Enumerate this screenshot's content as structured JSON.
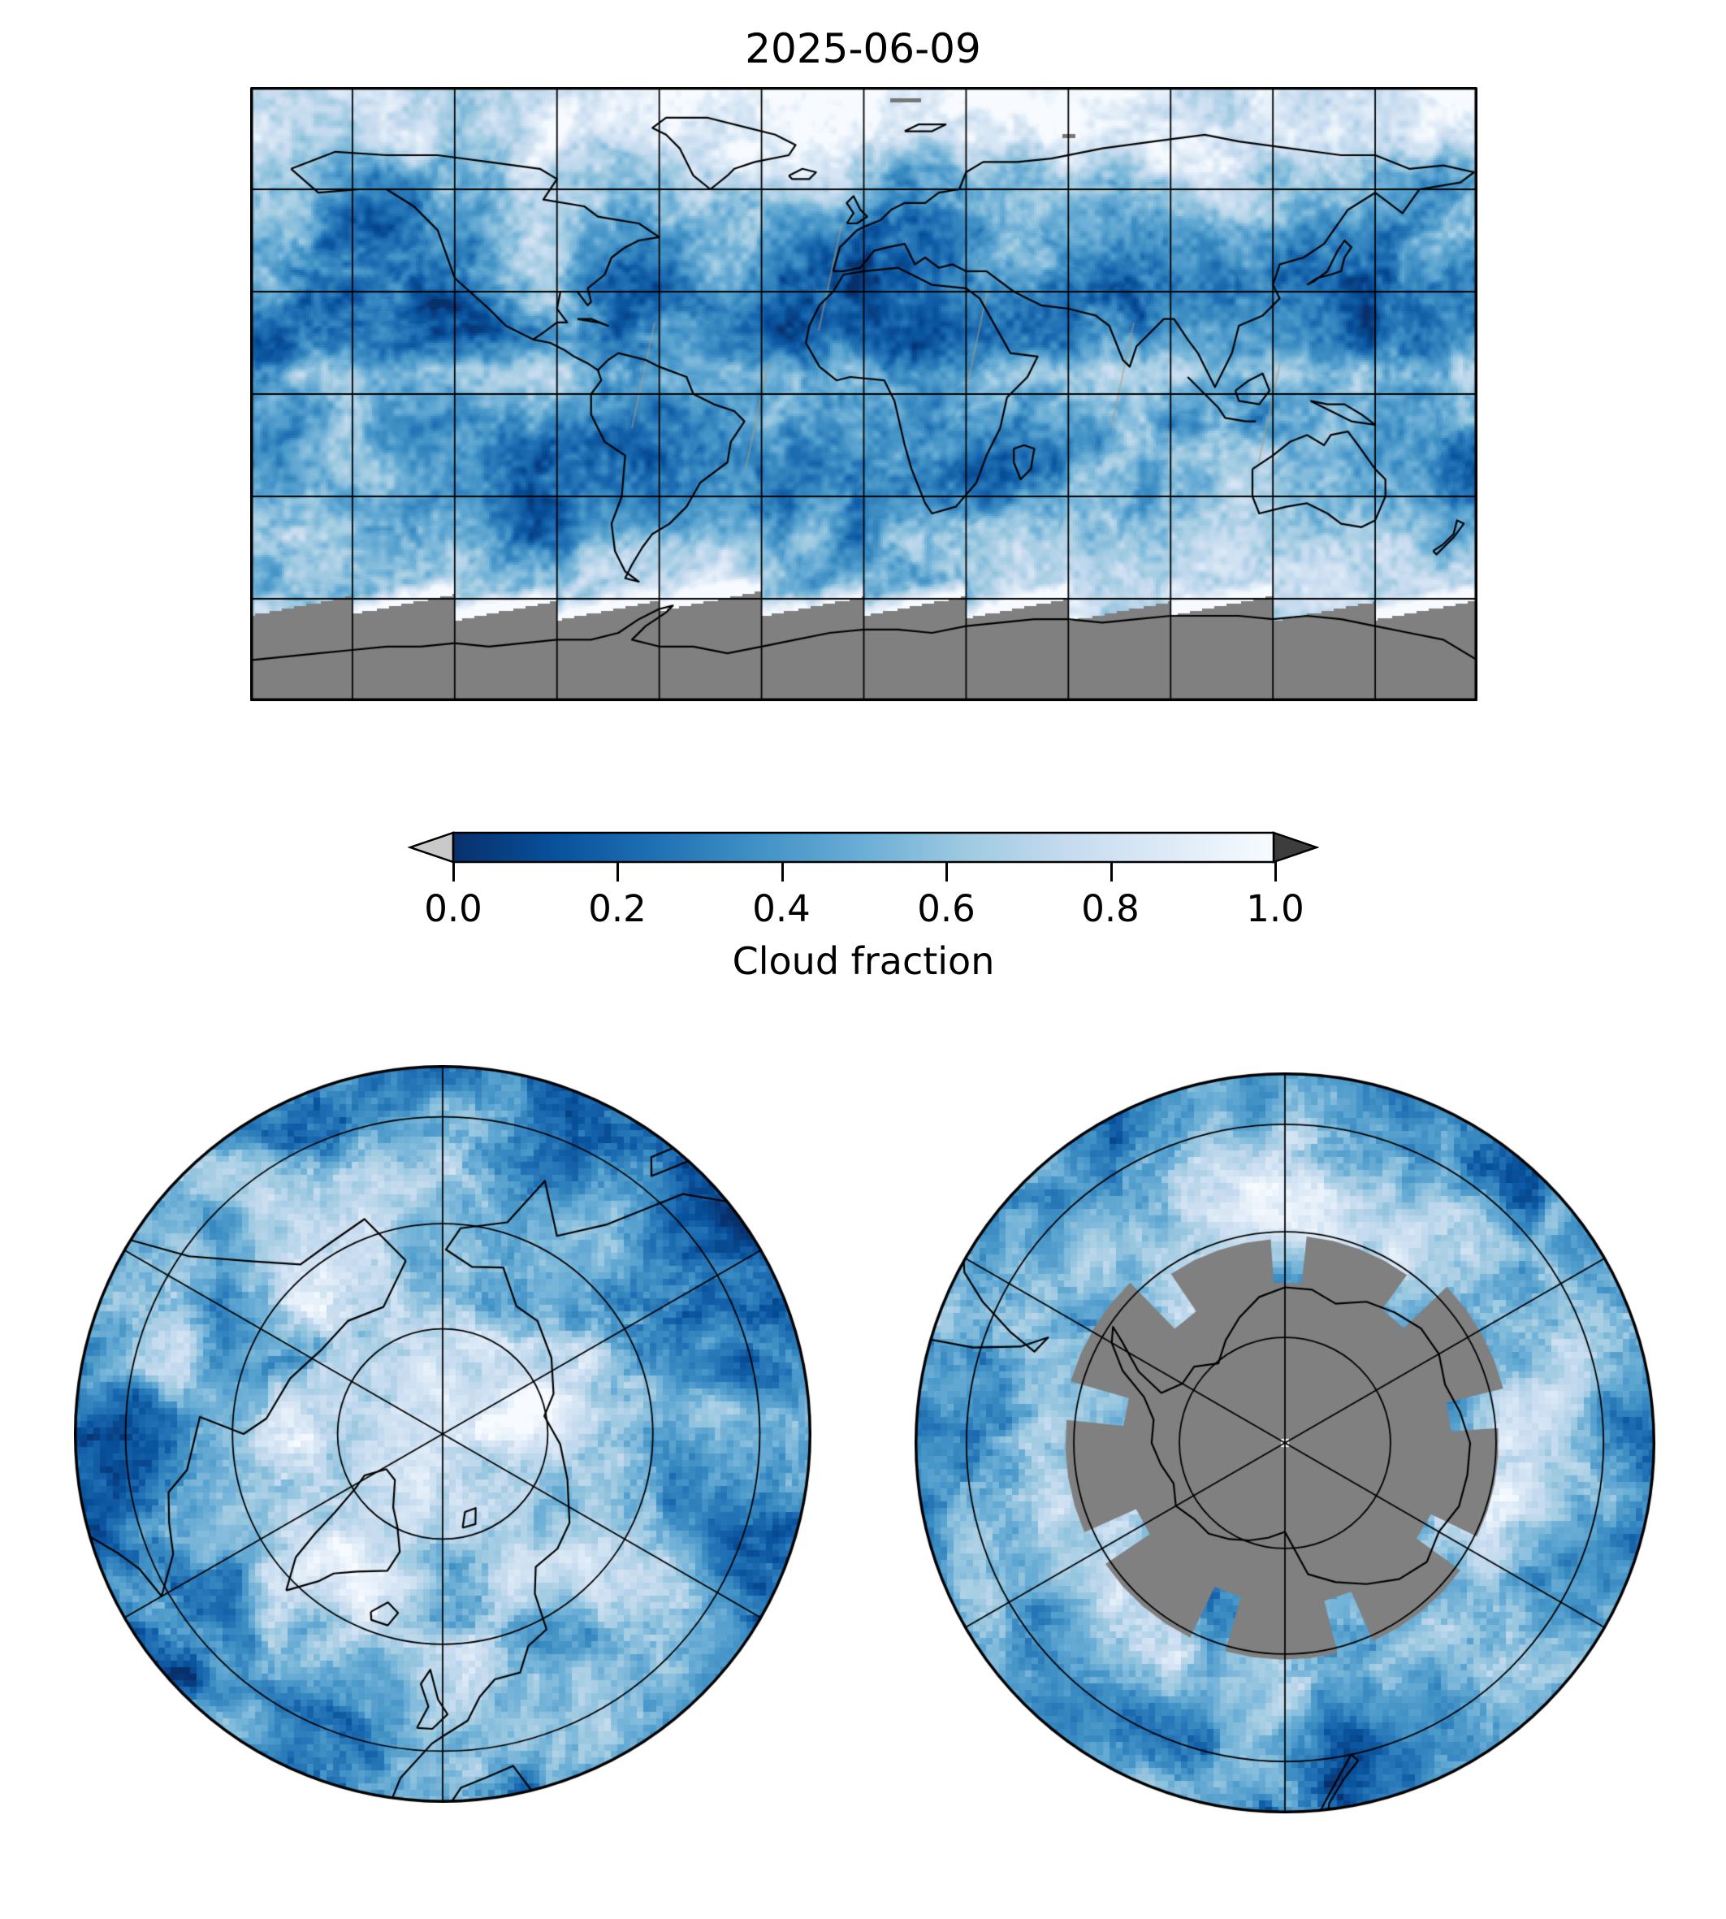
{
  "title": "2025-06-09",
  "colorbar": {
    "label": "Cloud fraction",
    "ticks": [
      "0.0",
      "0.2",
      "0.4",
      "0.6",
      "0.8",
      "1.0"
    ],
    "min": 0.0,
    "max": 1.0,
    "colormap_name": "Blues_r",
    "gradient_stops": [
      "#08306b",
      "#08519c",
      "#2171b5",
      "#4292c6",
      "#6baed6",
      "#9ecae1",
      "#c6dbef",
      "#deebf7",
      "#f7fbff"
    ],
    "under_arrow_color": "#c9c9c9",
    "over_arrow_color": "#3d3d3d",
    "outline_color": "#000000"
  },
  "map_colors": {
    "missing_data_gray": "#808080",
    "coastline": "#000000",
    "gridline": "#000000",
    "figure_background": "#ffffff",
    "swath_streak": "#b09a7a"
  },
  "panels": {
    "world": {
      "projection": "equirectangular",
      "gridline_spacing_deg": 30,
      "lat_range": [
        -90,
        90
      ],
      "lon_range": [
        -180,
        180
      ]
    },
    "north_polar": {
      "projection": "north-polar",
      "meridian_spacing_deg": 60,
      "parallel_rings": 3
    },
    "south_polar": {
      "projection": "south-polar",
      "meridian_spacing_deg": 60,
      "parallel_rings": 3
    }
  },
  "chart_data": {
    "type": "heatmap",
    "title": "2025-06-09",
    "colorbar_label": "Cloud fraction",
    "colorbar_ticks": [
      0.0,
      0.2,
      0.4,
      0.6,
      0.8,
      1.0
    ],
    "value_range": [
      0,
      1
    ],
    "colormap": "Blues_r (0 = dark blue, 1 = white)",
    "under_color": "light gray arrow",
    "over_color": "dark gray arrow",
    "missing_data": "solid gray (#808080) south of ~60S in world map (sawtooth swath edge) and pinwheel-shaped region over Antarctica in south polar view; polar night / no retrieval",
    "panels": [
      "global equirectangular cloud-fraction map with 30-degree graticule and coastlines",
      "north polar view: near-total high cloud fraction (white) around the pole, 60-degree meridians, 3 latitude circles",
      "south polar view: gray no-data pinwheel over Antarctica with black Antarctic coastline, cloud field in surrounding ocean"
    ]
  }
}
